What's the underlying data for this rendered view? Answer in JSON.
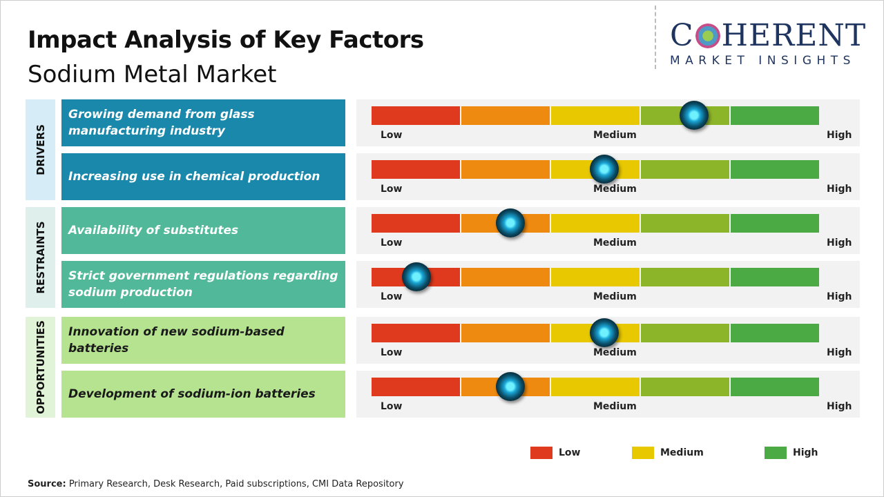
{
  "title": "Impact Analysis of Key Factors",
  "subtitle": "Sodium Metal Market",
  "logo": {
    "main": "COHERENT",
    "sub": "MARKET INSIGHTS"
  },
  "scale": {
    "low": "Low",
    "medium": "Medium",
    "high": "High"
  },
  "colors": {
    "segments": [
      "#e03a1e",
      "#ef8a10",
      "#e8c800",
      "#8db52a",
      "#4caa45"
    ],
    "drivers": "#1a88aa",
    "restraints": "#52b89a",
    "opportunities": "#b5e38f"
  },
  "groups": [
    {
      "label": "DRIVERS",
      "factors": [
        {
          "text": "Growing demand from glass manufacturing industry",
          "impact": 0.72
        },
        {
          "text": "Increasing use in chemical production",
          "impact": 0.52
        }
      ]
    },
    {
      "label": "RESTRAINTS",
      "factors": [
        {
          "text": "Availability of substitutes",
          "impact": 0.31
        },
        {
          "text": "Strict government regulations regarding sodium production",
          "impact": 0.1
        }
      ]
    },
    {
      "label": "OPPORTUNITIES",
      "factors": [
        {
          "text": "Innovation of new sodium-based batteries",
          "impact": 0.52
        },
        {
          "text": "Development of sodium-ion batteries",
          "impact": 0.31
        }
      ]
    }
  ],
  "legend": [
    {
      "label": "Low",
      "color": "#e03a1e"
    },
    {
      "label": "Medium",
      "color": "#e8c800"
    },
    {
      "label": "High",
      "color": "#4caa45"
    }
  ],
  "source": {
    "label": "Source:",
    "text": " Primary Research, Desk Research, Paid subscriptions, CMI Data Repository"
  }
}
